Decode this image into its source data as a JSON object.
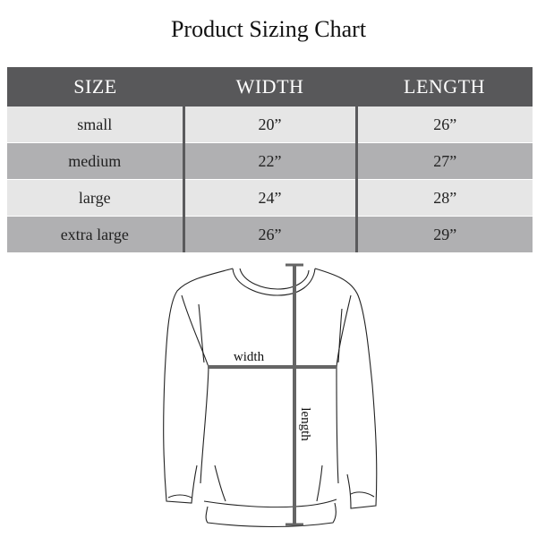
{
  "title": "Product Sizing Chart",
  "table": {
    "headers": [
      "SIZE",
      "WIDTH",
      "LENGTH"
    ],
    "rows": [
      [
        "small",
        "20”",
        "26”"
      ],
      [
        "medium",
        "22”",
        "27”"
      ],
      [
        "large",
        "24”",
        "28”"
      ],
      [
        "extra large",
        "26”",
        "29”"
      ]
    ]
  },
  "diagram": {
    "width_label": "width",
    "length_label": "length"
  },
  "colors": {
    "header": "#58585a",
    "row_light": "#e6e6e6",
    "row_dark": "#b0b0b2",
    "measure_line": "#656565"
  }
}
